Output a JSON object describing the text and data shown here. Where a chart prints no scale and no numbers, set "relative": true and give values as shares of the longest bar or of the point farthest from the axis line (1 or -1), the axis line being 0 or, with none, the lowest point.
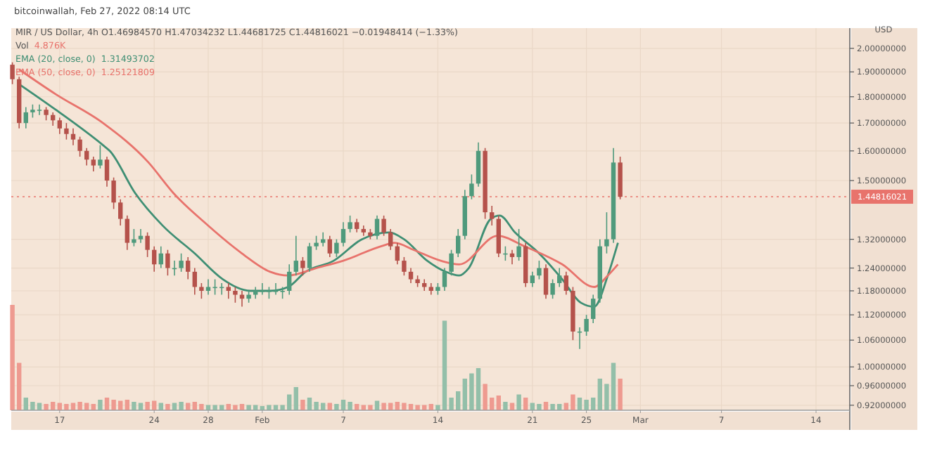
{
  "chart_data": [
    {
      "type": "candlestick",
      "title": "MIR / US Dollar, 4h O1.46984570 H1.47034232 L1.44681725 C1.44816021 −0.01948414 (−1.33%)",
      "subtitle": "bitcoinwallah, Feb 27, 2022 08:14 UTC",
      "ylabel": "USD",
      "log": true,
      "grid": true,
      "legend": "top left",
      "x": [
        "2022-01-13T12:00",
        "2022-01-14T00:00",
        "2022-01-14T12:00",
        "2022-01-15T00:00",
        "2022-01-15T12:00",
        "2022-01-16T00:00",
        "2022-01-16T12:00",
        "2022-01-17T00:00",
        "2022-01-17T12:00",
        "2022-01-18T00:00",
        "2022-01-18T12:00",
        "2022-01-19T00:00",
        "2022-01-19T12:00",
        "2022-01-20T00:00",
        "2022-01-20T12:00",
        "2022-01-21T00:00",
        "2022-01-21T12:00",
        "2022-01-22T00:00",
        "2022-01-22T12:00",
        "2022-01-23T00:00",
        "2022-01-23T12:00",
        "2022-01-24T00:00",
        "2022-01-24T12:00",
        "2022-01-25T00:00",
        "2022-01-25T12:00",
        "2022-01-26T00:00",
        "2022-01-26T12:00",
        "2022-01-27T00:00",
        "2022-01-27T12:00",
        "2022-01-28T00:00",
        "2022-01-28T12:00",
        "2022-01-29T00:00",
        "2022-01-29T12:00",
        "2022-01-30T00:00",
        "2022-01-30T12:00",
        "2022-01-31T00:00",
        "2022-01-31T12:00",
        "2022-02-01T00:00",
        "2022-02-01T12:00",
        "2022-02-02T00:00",
        "2022-02-02T12:00",
        "2022-02-03T00:00",
        "2022-02-03T12:00",
        "2022-02-04T00:00",
        "2022-02-04T12:00",
        "2022-02-05T00:00",
        "2022-02-05T12:00",
        "2022-02-06T00:00",
        "2022-02-06T12:00",
        "2022-02-07T00:00",
        "2022-02-07T12:00",
        "2022-02-08T00:00",
        "2022-02-08T12:00",
        "2022-02-09T00:00",
        "2022-02-09T12:00",
        "2022-02-10T00:00",
        "2022-02-10T12:00",
        "2022-02-11T00:00",
        "2022-02-11T12:00",
        "2022-02-12T00:00",
        "2022-02-12T12:00",
        "2022-02-13T00:00",
        "2022-02-13T12:00",
        "2022-02-14T00:00",
        "2022-02-14T12:00",
        "2022-02-15T00:00",
        "2022-02-15T12:00",
        "2022-02-16T00:00",
        "2022-02-16T12:00",
        "2022-02-17T00:00",
        "2022-02-17T12:00",
        "2022-02-18T00:00",
        "2022-02-18T12:00",
        "2022-02-19T00:00",
        "2022-02-19T12:00",
        "2022-02-20T00:00",
        "2022-02-20T12:00",
        "2022-02-21T00:00",
        "2022-02-21T12:00",
        "2022-02-22T00:00",
        "2022-02-22T12:00",
        "2022-02-23T00:00",
        "2022-02-23T12:00",
        "2022-02-24T00:00",
        "2022-02-24T12:00",
        "2022-02-25T00:00",
        "2022-02-25T12:00",
        "2022-02-26T00:00",
        "2022-02-26T12:00",
        "2022-02-27T00:00",
        "2022-02-27T12:00"
      ],
      "ohlc": [
        [
          1.93,
          1.94,
          1.85,
          1.87
        ],
        [
          1.87,
          1.88,
          1.68,
          1.7
        ],
        [
          1.7,
          1.76,
          1.68,
          1.74
        ],
        [
          1.74,
          1.77,
          1.72,
          1.75
        ],
        [
          1.75,
          1.77,
          1.73,
          1.75
        ],
        [
          1.75,
          1.76,
          1.71,
          1.73
        ],
        [
          1.73,
          1.74,
          1.69,
          1.71
        ],
        [
          1.71,
          1.72,
          1.66,
          1.68
        ],
        [
          1.68,
          1.7,
          1.64,
          1.66
        ],
        [
          1.66,
          1.68,
          1.62,
          1.64
        ],
        [
          1.64,
          1.65,
          1.58,
          1.6
        ],
        [
          1.6,
          1.61,
          1.55,
          1.57
        ],
        [
          1.57,
          1.58,
          1.53,
          1.55
        ],
        [
          1.55,
          1.62,
          1.54,
          1.57
        ],
        [
          1.57,
          1.58,
          1.48,
          1.5
        ],
        [
          1.5,
          1.51,
          1.41,
          1.43
        ],
        [
          1.43,
          1.44,
          1.36,
          1.38
        ],
        [
          1.38,
          1.39,
          1.29,
          1.31
        ],
        [
          1.31,
          1.35,
          1.3,
          1.32
        ],
        [
          1.32,
          1.35,
          1.31,
          1.33
        ],
        [
          1.33,
          1.34,
          1.27,
          1.29
        ],
        [
          1.29,
          1.3,
          1.23,
          1.25
        ],
        [
          1.25,
          1.3,
          1.24,
          1.28
        ],
        [
          1.28,
          1.29,
          1.22,
          1.24
        ],
        [
          1.24,
          1.26,
          1.22,
          1.24
        ],
        [
          1.24,
          1.28,
          1.23,
          1.26
        ],
        [
          1.26,
          1.27,
          1.21,
          1.23
        ],
        [
          1.23,
          1.24,
          1.17,
          1.19
        ],
        [
          1.19,
          1.2,
          1.16,
          1.18
        ],
        [
          1.18,
          1.21,
          1.17,
          1.19
        ],
        [
          1.19,
          1.21,
          1.17,
          1.19
        ],
        [
          1.19,
          1.2,
          1.17,
          1.19
        ],
        [
          1.19,
          1.2,
          1.16,
          1.18
        ],
        [
          1.18,
          1.19,
          1.15,
          1.17
        ],
        [
          1.17,
          1.18,
          1.14,
          1.16
        ],
        [
          1.16,
          1.18,
          1.15,
          1.17
        ],
        [
          1.17,
          1.19,
          1.16,
          1.18
        ],
        [
          1.18,
          1.2,
          1.17,
          1.18
        ],
        [
          1.18,
          1.19,
          1.16,
          1.18
        ],
        [
          1.18,
          1.2,
          1.17,
          1.18
        ],
        [
          1.18,
          1.19,
          1.16,
          1.18
        ],
        [
          1.18,
          1.25,
          1.17,
          1.23
        ],
        [
          1.23,
          1.33,
          1.22,
          1.26
        ],
        [
          1.26,
          1.27,
          1.22,
          1.24
        ],
        [
          1.24,
          1.31,
          1.23,
          1.3
        ],
        [
          1.3,
          1.33,
          1.29,
          1.31
        ],
        [
          1.31,
          1.34,
          1.3,
          1.32
        ],
        [
          1.32,
          1.33,
          1.27,
          1.28
        ],
        [
          1.28,
          1.32,
          1.27,
          1.31
        ],
        [
          1.31,
          1.37,
          1.3,
          1.35
        ],
        [
          1.35,
          1.39,
          1.34,
          1.37
        ],
        [
          1.37,
          1.38,
          1.34,
          1.35
        ],
        [
          1.35,
          1.36,
          1.33,
          1.34
        ],
        [
          1.34,
          1.35,
          1.32,
          1.33
        ],
        [
          1.33,
          1.39,
          1.32,
          1.38
        ],
        [
          1.38,
          1.39,
          1.33,
          1.34
        ],
        [
          1.34,
          1.35,
          1.29,
          1.3
        ],
        [
          1.3,
          1.31,
          1.25,
          1.26
        ],
        [
          1.26,
          1.27,
          1.22,
          1.23
        ],
        [
          1.23,
          1.24,
          1.2,
          1.21
        ],
        [
          1.21,
          1.22,
          1.19,
          1.2
        ],
        [
          1.2,
          1.21,
          1.18,
          1.19
        ],
        [
          1.19,
          1.2,
          1.17,
          1.18
        ],
        [
          1.18,
          1.2,
          1.17,
          1.19
        ],
        [
          1.19,
          1.24,
          1.18,
          1.23
        ],
        [
          1.23,
          1.29,
          1.22,
          1.28
        ],
        [
          1.28,
          1.35,
          1.27,
          1.33
        ],
        [
          1.33,
          1.47,
          1.32,
          1.45
        ],
        [
          1.45,
          1.52,
          1.44,
          1.49
        ],
        [
          1.49,
          1.63,
          1.48,
          1.6
        ],
        [
          1.6,
          1.61,
          1.38,
          1.4
        ],
        [
          1.4,
          1.42,
          1.36,
          1.38
        ],
        [
          1.38,
          1.39,
          1.27,
          1.28
        ],
        [
          1.28,
          1.3,
          1.26,
          1.28
        ],
        [
          1.28,
          1.29,
          1.25,
          1.27
        ],
        [
          1.27,
          1.35,
          1.26,
          1.3
        ],
        [
          1.3,
          1.31,
          1.19,
          1.2
        ],
        [
          1.2,
          1.23,
          1.19,
          1.22
        ],
        [
          1.22,
          1.26,
          1.21,
          1.24
        ],
        [
          1.24,
          1.25,
          1.16,
          1.17
        ],
        [
          1.17,
          1.21,
          1.16,
          1.2
        ],
        [
          1.2,
          1.24,
          1.19,
          1.22
        ],
        [
          1.22,
          1.23,
          1.17,
          1.18
        ],
        [
          1.18,
          1.19,
          1.06,
          1.08
        ],
        [
          1.08,
          1.09,
          1.04,
          1.08
        ],
        [
          1.08,
          1.12,
          1.07,
          1.11
        ],
        [
          1.11,
          1.17,
          1.1,
          1.16
        ],
        [
          1.16,
          1.32,
          1.15,
          1.3
        ],
        [
          1.3,
          1.4,
          1.28,
          1.32
        ],
        [
          1.32,
          1.61,
          1.31,
          1.56
        ],
        [
          1.56,
          1.58,
          1.44,
          1.448
        ]
      ],
      "series": [
        {
          "type": "line",
          "name": "EMA (20, close, 0)",
          "color": "#3f8f74",
          "x": [
            "2022-01-14T00:00",
            "2022-01-16T17:00",
            "2022-01-20T05:00",
            "2022-01-20T17:00",
            "2022-01-22T14:00",
            "2022-01-24T15:00",
            "2022-01-27T00:00",
            "2022-01-29T02:00",
            "2022-01-31T03:00",
            "2022-02-01T14:00",
            "2022-02-02T22:00",
            "2022-02-04T05:00",
            "2022-02-06T07:00",
            "2022-02-08T09:00",
            "2022-02-10T10:00",
            "2022-02-11T12:00",
            "2022-02-13T05:00",
            "2022-02-14T14:00",
            "2022-02-15T14:00",
            "2022-02-16T07:00",
            "2022-02-17T22:00",
            "2022-02-18T14:00",
            "2022-02-19T17:00",
            "2022-02-21T12:00",
            "2022-02-23T05:00",
            "2022-02-24T14:00",
            "2022-02-25T14:00",
            "2022-02-26T14:00",
            "2022-02-27T08:00"
          ],
          "values": [
            1.85,
            1.75,
            1.62,
            1.6,
            1.46,
            1.36,
            1.28,
            1.21,
            1.18,
            1.18,
            1.19,
            1.23,
            1.26,
            1.32,
            1.34,
            1.32,
            1.26,
            1.23,
            1.22,
            1.24,
            1.38,
            1.39,
            1.34,
            1.28,
            1.21,
            1.15,
            1.14,
            1.22,
            1.31
          ]
        },
        {
          "type": "line",
          "name": "EMA (50, close, 0)",
          "color": "#e8736c",
          "x": [
            "2022-01-14T00:00",
            "2022-01-16T17:00",
            "2022-01-20T05:00",
            "2022-01-23T14:00",
            "2022-01-25T10:00",
            "2022-01-27T17:00",
            "2022-01-30T12:00",
            "2022-02-01T14:00",
            "2022-02-02T22:00",
            "2022-02-05T00:00",
            "2022-02-07T00:00",
            "2022-02-09T19:00",
            "2022-02-10T19:00",
            "2022-02-12T05:00",
            "2022-02-14T05:00",
            "2022-02-15T14:00",
            "2022-02-18T10:00",
            "2022-02-20T10:00",
            "2022-02-23T05:00",
            "2022-02-25T14:00",
            "2022-02-26T14:00",
            "2022-02-27T08:00"
          ],
          "values": [
            1.91,
            1.81,
            1.7,
            1.56,
            1.46,
            1.37,
            1.28,
            1.23,
            1.22,
            1.24,
            1.26,
            1.3,
            1.31,
            1.29,
            1.26,
            1.25,
            1.33,
            1.3,
            1.25,
            1.19,
            1.22,
            1.25
          ]
        }
      ],
      "annotations": [
        "1.31493702",
        "1.25121809"
      ],
      "ref_lines": [
        {
          "axis": "y",
          "value": 1.44816021,
          "label": "1.44816021",
          "color": "#e8736c",
          "line_style": "dotted"
        }
      ],
      "xlim": [
        "2022-01-13T10:00",
        "2022-03-16T12:00"
      ],
      "xticks": [
        {
          "value": "2022-01-17",
          "label": "17"
        },
        {
          "value": "2022-01-24",
          "label": "24"
        },
        {
          "value": "2022-01-28",
          "label": "28"
        },
        {
          "value": "2022-02-01",
          "label": "Feb"
        },
        {
          "value": "2022-02-07",
          "label": "7"
        },
        {
          "value": "2022-02-14",
          "label": "14"
        },
        {
          "value": "2022-02-21",
          "label": "21"
        },
        {
          "value": "2022-02-25",
          "label": "25"
        },
        {
          "value": "2022-03-01",
          "label": "Mar"
        },
        {
          "value": "2022-03-07",
          "label": "7"
        },
        {
          "value": "2022-03-14",
          "label": "14"
        }
      ],
      "ylim": [
        0.91,
        2.09
      ],
      "yticks": [
        {
          "value": 2,
          "label": "2.00000000"
        },
        {
          "value": 1.9,
          "label": "1.90000000"
        },
        {
          "value": 1.8,
          "label": "1.80000000"
        },
        {
          "value": 1.7,
          "label": "1.70000000"
        },
        {
          "value": 1.6,
          "label": "1.60000000"
        },
        {
          "value": 1.5,
          "label": "1.50000000"
        },
        {
          "value": 1.32,
          "label": "1.32000000"
        },
        {
          "value": 1.24,
          "label": "1.24000000"
        },
        {
          "value": 1.18,
          "label": "1.18000000"
        },
        {
          "value": 1.12,
          "label": "1.12000000"
        },
        {
          "value": 1.06,
          "label": "1.06000000"
        },
        {
          "value": 1,
          "label": "1.00000000"
        },
        {
          "value": 0.96,
          "label": "0.96000000"
        },
        {
          "value": 0.92,
          "label": "0.92000000"
        }
      ]
    },
    {
      "type": "bar",
      "relative": true,
      "series": [
        {
          "name": "Vol",
          "values": [
            1.0,
            0.45,
            0.12,
            0.08,
            0.07,
            0.06,
            0.08,
            0.07,
            0.06,
            0.07,
            0.08,
            0.07,
            0.06,
            0.1,
            0.12,
            0.1,
            0.09,
            0.1,
            0.08,
            0.07,
            0.08,
            0.09,
            0.07,
            0.06,
            0.07,
            0.08,
            0.07,
            0.08,
            0.06,
            0.05,
            0.05,
            0.05,
            0.06,
            0.05,
            0.06,
            0.05,
            0.05,
            0.04,
            0.05,
            0.05,
            0.05,
            0.15,
            0.22,
            0.1,
            0.12,
            0.08,
            0.07,
            0.07,
            0.06,
            0.1,
            0.08,
            0.06,
            0.05,
            0.05,
            0.09,
            0.07,
            0.07,
            0.08,
            0.07,
            0.06,
            0.05,
            0.05,
            0.06,
            0.05,
            0.85,
            0.12,
            0.18,
            0.3,
            0.35,
            0.4,
            0.25,
            0.12,
            0.14,
            0.08,
            0.07,
            0.15,
            0.12,
            0.07,
            0.06,
            0.08,
            0.06,
            0.06,
            0.07,
            0.15,
            0.12,
            0.1,
            0.12,
            0.3,
            0.25,
            0.45,
            0.3
          ]
        }
      ],
      "x": [
        "2022-01-13T12:00",
        "2022-01-14T00:00",
        "2022-01-14T12:00",
        "2022-01-15T00:00",
        "2022-01-15T12:00",
        "2022-01-16T00:00",
        "2022-01-16T12:00",
        "2022-01-17T00:00",
        "2022-01-17T12:00",
        "2022-01-18T00:00",
        "2022-01-18T12:00",
        "2022-01-19T00:00",
        "2022-01-19T12:00",
        "2022-01-20T00:00",
        "2022-01-20T12:00",
        "2022-01-21T00:00",
        "2022-01-21T12:00",
        "2022-01-22T00:00",
        "2022-01-22T12:00",
        "2022-01-23T00:00",
        "2022-01-23T12:00",
        "2022-01-24T00:00",
        "2022-01-24T12:00",
        "2022-01-25T00:00",
        "2022-01-25T12:00",
        "2022-01-26T00:00",
        "2022-01-26T12:00",
        "2022-01-27T00:00",
        "2022-01-27T12:00",
        "2022-01-28T00:00",
        "2022-01-28T12:00",
        "2022-01-29T00:00",
        "2022-01-29T12:00",
        "2022-01-30T00:00",
        "2022-01-30T12:00",
        "2022-01-31T00:00",
        "2022-01-31T12:00",
        "2022-02-01T00:00",
        "2022-02-01T12:00",
        "2022-02-02T00:00",
        "2022-02-02T12:00",
        "2022-02-03T00:00",
        "2022-02-03T12:00",
        "2022-02-04T00:00",
        "2022-02-04T12:00",
        "2022-02-05T00:00",
        "2022-02-05T12:00",
        "2022-02-06T00:00",
        "2022-02-06T12:00",
        "2022-02-07T00:00",
        "2022-02-07T12:00",
        "2022-02-08T00:00",
        "2022-02-08T12:00",
        "2022-02-09T00:00",
        "2022-02-09T12:00",
        "2022-02-10T00:00",
        "2022-02-10T12:00",
        "2022-02-11T00:00",
        "2022-02-11T12:00",
        "2022-02-12T00:00",
        "2022-02-12T12:00",
        "2022-02-13T00:00",
        "2022-02-13T12:00",
        "2022-02-14T00:00",
        "2022-02-14T12:00",
        "2022-02-15T00:00",
        "2022-02-15T12:00",
        "2022-02-16T00:00",
        "2022-02-16T12:00",
        "2022-02-17T00:00",
        "2022-02-17T12:00",
        "2022-02-18T00:00",
        "2022-02-18T12:00",
        "2022-02-19T00:00",
        "2022-02-19T12:00",
        "2022-02-20T00:00",
        "2022-02-20T12:00",
        "2022-02-21T00:00",
        "2022-02-21T12:00",
        "2022-02-22T00:00",
        "2022-02-22T12:00",
        "2022-02-23T00:00",
        "2022-02-23T12:00",
        "2022-02-24T00:00",
        "2022-02-24T12:00",
        "2022-02-25T00:00",
        "2022-02-25T12:00",
        "2022-02-26T00:00",
        "2022-02-26T12:00",
        "2022-02-27T00:00",
        "2022-02-27T12:00"
      ],
      "xlim": [
        "2022-01-13T10:00",
        "2022-03-16T12:00"
      ],
      "xticks": [
        {
          "value": "2022-01-17",
          "label": null
        },
        {
          "value": "2022-01-24",
          "label": null
        },
        {
          "value": "2022-01-28",
          "label": null
        },
        {
          "value": "2022-02-01",
          "label": null
        },
        {
          "value": "2022-02-07",
          "label": null
        },
        {
          "value": "2022-02-14",
          "label": null
        },
        {
          "value": "2022-02-21",
          "label": null
        },
        {
          "value": "2022-02-25",
          "label": null
        },
        {
          "value": "2022-03-01",
          "label": null
        },
        {
          "value": "2022-03-07",
          "label": null
        },
        {
          "value": "2022-03-14",
          "label": null
        }
      ],
      "tick_labels": false,
      "annotations": [
        "4.876K"
      ]
    }
  ]
}
